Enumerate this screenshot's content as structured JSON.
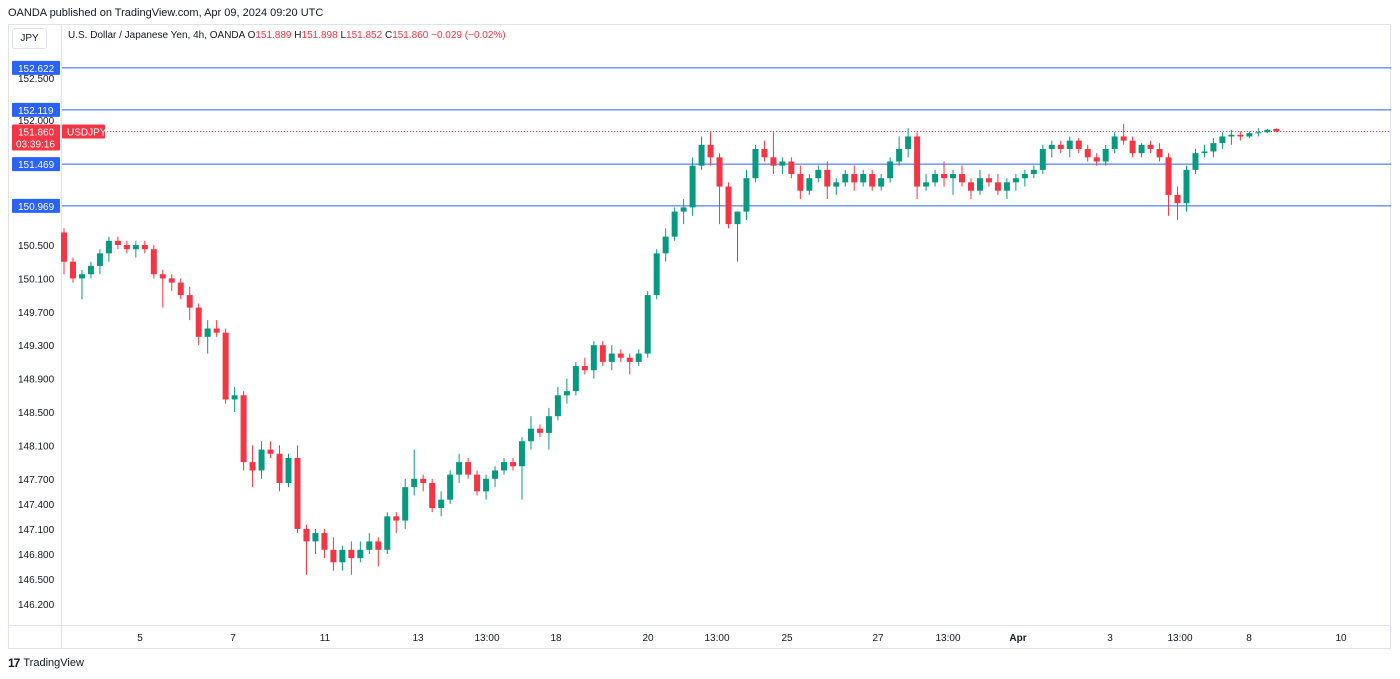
{
  "header": {
    "published": "OANDA published on TradingView.com, Apr 09, 2024 09:20 UTC"
  },
  "symbol_button": "JPY",
  "legend": {
    "title": "U.S. Dollar / Japanese Yen, 4h, OANDA",
    "o_label": "O",
    "o_value": "151.889",
    "h_label": "H",
    "h_value": "151.898",
    "l_label": "L",
    "l_value": "151.852",
    "c_label": "C",
    "c_value": "151.860",
    "change": "−0.029 (−0.02%)"
  },
  "footer": {
    "logo": "17",
    "brand": "TradingView"
  },
  "colors": {
    "up": "#089981",
    "down": "#f23645",
    "hline": "#2962ff",
    "grid": "#e0e3eb"
  },
  "chart_data": {
    "type": "candlestick",
    "symbol": "USDJPY",
    "timeframe": "4h",
    "ylim": [
      146.0,
      152.9
    ],
    "y_ticks": [
      "150.500",
      "150.100",
      "149.700",
      "149.300",
      "148.900",
      "148.500",
      "148.100",
      "147.700",
      "147.400",
      "147.100",
      "146.800",
      "146.500",
      "146.200"
    ],
    "y_ticks_partial": [
      "152.500",
      "152.000"
    ],
    "x_ticks": [
      "5",
      "7",
      "11",
      "13",
      "13:00",
      "18",
      "20",
      "13:00",
      "25",
      "27",
      "13:00",
      "Apr",
      "3",
      "13:00",
      "8",
      "10"
    ],
    "horizontal_lines": [
      "152.622",
      "152.119",
      "151.469",
      "150.969"
    ],
    "current_price": {
      "value": "151.860",
      "label": "USDJPY",
      "countdown": "03:39:16"
    },
    "candles": [
      [
        150.65,
        150.7,
        150.15,
        150.3
      ],
      [
        150.3,
        150.35,
        150.05,
        150.1
      ],
      [
        150.1,
        150.2,
        149.85,
        150.15
      ],
      [
        150.15,
        150.3,
        150.1,
        150.25
      ],
      [
        150.25,
        150.45,
        150.15,
        150.4
      ],
      [
        150.4,
        150.6,
        150.3,
        150.55
      ],
      [
        150.55,
        150.6,
        150.45,
        150.5
      ],
      [
        150.5,
        150.55,
        150.4,
        150.45
      ],
      [
        150.45,
        150.55,
        150.35,
        150.5
      ],
      [
        150.5,
        150.55,
        150.4,
        150.45
      ],
      [
        150.45,
        150.5,
        150.1,
        150.15
      ],
      [
        150.15,
        150.2,
        149.75,
        150.1
      ],
      [
        150.1,
        150.15,
        149.95,
        150.05
      ],
      [
        150.05,
        150.1,
        149.85,
        149.9
      ],
      [
        149.9,
        150.0,
        149.6,
        149.75
      ],
      [
        149.75,
        149.8,
        149.3,
        149.4
      ],
      [
        149.4,
        149.6,
        149.2,
        149.5
      ],
      [
        149.5,
        149.6,
        149.4,
        149.45
      ],
      [
        149.45,
        149.5,
        148.6,
        148.65
      ],
      [
        148.65,
        148.8,
        148.5,
        148.7
      ],
      [
        148.7,
        148.75,
        147.8,
        147.9
      ],
      [
        147.9,
        148.1,
        147.6,
        147.8
      ],
      [
        147.8,
        148.15,
        147.7,
        148.05
      ],
      [
        148.05,
        148.15,
        147.95,
        148.0
      ],
      [
        148.0,
        148.1,
        147.55,
        147.65
      ],
      [
        147.65,
        148.0,
        147.6,
        147.95
      ],
      [
        147.95,
        148.1,
        147.05,
        147.1
      ],
      [
        147.1,
        147.15,
        146.55,
        146.95
      ],
      [
        146.95,
        147.1,
        146.8,
        147.05
      ],
      [
        147.05,
        147.1,
        146.75,
        146.85
      ],
      [
        146.85,
        147.0,
        146.6,
        146.7
      ],
      [
        146.7,
        146.9,
        146.6,
        146.85
      ],
      [
        146.85,
        146.95,
        146.55,
        146.75
      ],
      [
        146.75,
        146.95,
        146.7,
        146.85
      ],
      [
        146.85,
        147.05,
        146.8,
        146.95
      ],
      [
        146.95,
        147.0,
        146.65,
        146.85
      ],
      [
        146.85,
        147.3,
        146.8,
        147.25
      ],
      [
        147.25,
        147.3,
        147.05,
        147.2
      ],
      [
        147.2,
        147.7,
        147.1,
        147.6
      ],
      [
        147.6,
        148.05,
        147.5,
        147.7
      ],
      [
        147.7,
        147.75,
        147.55,
        147.65
      ],
      [
        147.65,
        147.7,
        147.3,
        147.35
      ],
      [
        147.35,
        147.55,
        147.25,
        147.45
      ],
      [
        147.45,
        147.8,
        147.4,
        147.75
      ],
      [
        147.75,
        148.0,
        147.65,
        147.9
      ],
      [
        147.9,
        147.95,
        147.7,
        147.75
      ],
      [
        147.75,
        147.8,
        147.5,
        147.55
      ],
      [
        147.55,
        147.75,
        147.45,
        147.7
      ],
      [
        147.7,
        147.85,
        147.6,
        147.8
      ],
      [
        147.8,
        147.95,
        147.75,
        147.9
      ],
      [
        147.9,
        147.95,
        147.8,
        147.85
      ],
      [
        147.85,
        148.2,
        147.45,
        148.15
      ],
      [
        148.15,
        148.45,
        148.05,
        148.3
      ],
      [
        148.3,
        148.35,
        148.2,
        148.25
      ],
      [
        148.25,
        148.55,
        148.05,
        148.45
      ],
      [
        148.45,
        148.8,
        148.4,
        148.7
      ],
      [
        148.7,
        148.9,
        148.6,
        148.75
      ],
      [
        148.75,
        149.1,
        148.7,
        149.05
      ],
      [
        149.05,
        149.15,
        148.95,
        149.0
      ],
      [
        149.0,
        149.35,
        148.9,
        149.3
      ],
      [
        149.3,
        149.35,
        149.05,
        149.1
      ],
      [
        149.1,
        149.3,
        149.0,
        149.2
      ],
      [
        149.2,
        149.25,
        149.1,
        149.15
      ],
      [
        149.15,
        149.2,
        148.95,
        149.1
      ],
      [
        149.1,
        149.25,
        149.05,
        149.2
      ],
      [
        149.2,
        149.95,
        149.15,
        149.9
      ],
      [
        149.9,
        150.45,
        149.85,
        150.4
      ],
      [
        150.4,
        150.7,
        150.3,
        150.6
      ],
      [
        150.6,
        150.95,
        150.55,
        150.9
      ],
      [
        150.9,
        151.05,
        150.75,
        150.95
      ],
      [
        150.95,
        151.55,
        150.85,
        151.45
      ],
      [
        151.45,
        151.8,
        151.4,
        151.7
      ],
      [
        151.7,
        151.85,
        151.45,
        151.55
      ],
      [
        151.55,
        151.6,
        150.75,
        151.2
      ],
      [
        151.2,
        151.25,
        150.7,
        150.75
      ],
      [
        150.75,
        150.9,
        150.3,
        150.9
      ],
      [
        150.9,
        151.4,
        150.8,
        151.3
      ],
      [
        151.3,
        151.7,
        151.25,
        151.65
      ],
      [
        151.65,
        151.75,
        151.5,
        151.55
      ],
      [
        151.55,
        151.85,
        151.35,
        151.45
      ],
      [
        151.45,
        151.55,
        151.35,
        151.5
      ],
      [
        151.5,
        151.55,
        151.3,
        151.35
      ],
      [
        151.35,
        151.45,
        151.05,
        151.15
      ],
      [
        151.15,
        151.35,
        151.1,
        151.3
      ],
      [
        151.3,
        151.45,
        151.25,
        151.4
      ],
      [
        151.4,
        151.5,
        151.05,
        151.2
      ],
      [
        151.2,
        151.3,
        151.1,
        151.25
      ],
      [
        151.25,
        151.4,
        151.2,
        151.35
      ],
      [
        151.35,
        151.45,
        151.15,
        151.25
      ],
      [
        151.25,
        151.4,
        151.2,
        151.35
      ],
      [
        151.35,
        151.4,
        151.15,
        151.2
      ],
      [
        151.2,
        151.35,
        151.15,
        151.3
      ],
      [
        151.3,
        151.55,
        151.25,
        151.5
      ],
      [
        151.5,
        151.8,
        151.45,
        151.65
      ],
      [
        151.65,
        151.9,
        151.55,
        151.8
      ],
      [
        151.8,
        151.85,
        151.05,
        151.2
      ],
      [
        151.2,
        151.35,
        151.15,
        151.25
      ],
      [
        151.25,
        151.4,
        151.2,
        151.35
      ],
      [
        151.35,
        151.5,
        151.2,
        151.3
      ],
      [
        151.3,
        151.4,
        151.1,
        151.35
      ],
      [
        151.35,
        151.45,
        151.2,
        151.25
      ],
      [
        151.25,
        151.3,
        151.05,
        151.15
      ],
      [
        151.15,
        151.4,
        151.1,
        151.3
      ],
      [
        151.3,
        151.35,
        151.2,
        151.25
      ],
      [
        151.25,
        151.35,
        151.1,
        151.15
      ],
      [
        151.15,
        151.3,
        151.05,
        151.25
      ],
      [
        151.25,
        151.35,
        151.15,
        151.3
      ],
      [
        151.3,
        151.4,
        151.2,
        151.35
      ],
      [
        151.35,
        151.45,
        151.3,
        151.4
      ],
      [
        151.4,
        151.7,
        151.35,
        151.65
      ],
      [
        151.65,
        151.75,
        151.55,
        151.7
      ],
      [
        151.7,
        151.75,
        151.6,
        151.65
      ],
      [
        151.65,
        151.8,
        151.55,
        151.75
      ],
      [
        151.75,
        151.78,
        151.6,
        151.65
      ],
      [
        151.65,
        151.7,
        151.5,
        151.55
      ],
      [
        151.55,
        151.6,
        151.45,
        151.5
      ],
      [
        151.5,
        151.7,
        151.45,
        151.65
      ],
      [
        151.65,
        151.85,
        151.6,
        151.8
      ],
      [
        151.8,
        151.95,
        151.7,
        151.75
      ],
      [
        151.75,
        151.8,
        151.55,
        151.6
      ],
      [
        151.6,
        151.72,
        151.55,
        151.7
      ],
      [
        151.7,
        151.75,
        151.6,
        151.65
      ],
      [
        151.65,
        151.72,
        151.5,
        151.55
      ],
      [
        151.55,
        151.6,
        150.85,
        151.1
      ],
      [
        151.1,
        151.2,
        150.8,
        151.0
      ],
      [
        151.0,
        151.45,
        150.9,
        151.4
      ],
      [
        151.4,
        151.65,
        151.35,
        151.6
      ],
      [
        151.6,
        151.7,
        151.55,
        151.62
      ],
      [
        151.62,
        151.78,
        151.55,
        151.72
      ],
      [
        151.72,
        151.85,
        151.65,
        151.8
      ],
      [
        151.8,
        151.88,
        151.7,
        151.82
      ],
      [
        151.82,
        151.86,
        151.75,
        151.8
      ],
      [
        151.8,
        151.86,
        151.78,
        151.84
      ],
      [
        151.84,
        151.9,
        151.8,
        151.85
      ],
      [
        151.85,
        151.89,
        151.84,
        151.88
      ],
      [
        151.89,
        151.898,
        151.852,
        151.86
      ]
    ]
  }
}
